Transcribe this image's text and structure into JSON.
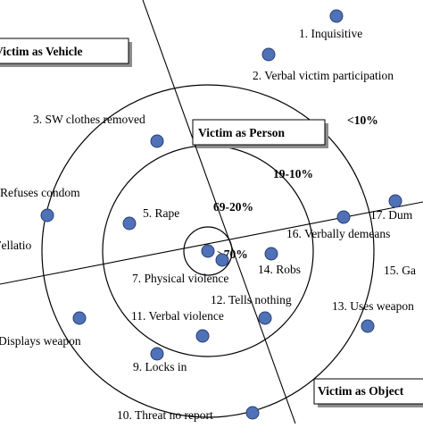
{
  "colors": {
    "dot_fill": "#4f71b8",
    "dot_stroke": "#2b3f6e",
    "line": "#000000",
    "box_shadow": "#8c8c8c",
    "background": "#ffffff"
  },
  "zones": {
    "vehicle": "Victim as Vehicle",
    "person": "Victim as Person",
    "object": "Victim as Object"
  },
  "percentages": {
    "outer": "<10%",
    "middle": "19-10%",
    "inner": "69-20%",
    "center": ">70%"
  },
  "items": {
    "inquisitive": "1. Inquisitive",
    "verbal_participation": "2. Verbal victim participation",
    "clothes_removed": "3. SW clothes removed",
    "refuses_condom": "Refuses condom",
    "rape": "5. Rape",
    "fellatio": "Fellatio",
    "physical_violence": "7. Physical violence",
    "displays_weapon": "Displays weapon",
    "locks_in": "9. Locks in",
    "threat_no_report": "10. Threat no report",
    "verbal_violence": "11. Verbal violence",
    "tells_nothing": "12. Tells nothing",
    "uses_weapon": "13. Uses weapon",
    "robs": "14. Robs",
    "ga": "15. Ga",
    "verbally_demeans": "16. Verbally demeans",
    "dum": "17. Dum"
  }
}
